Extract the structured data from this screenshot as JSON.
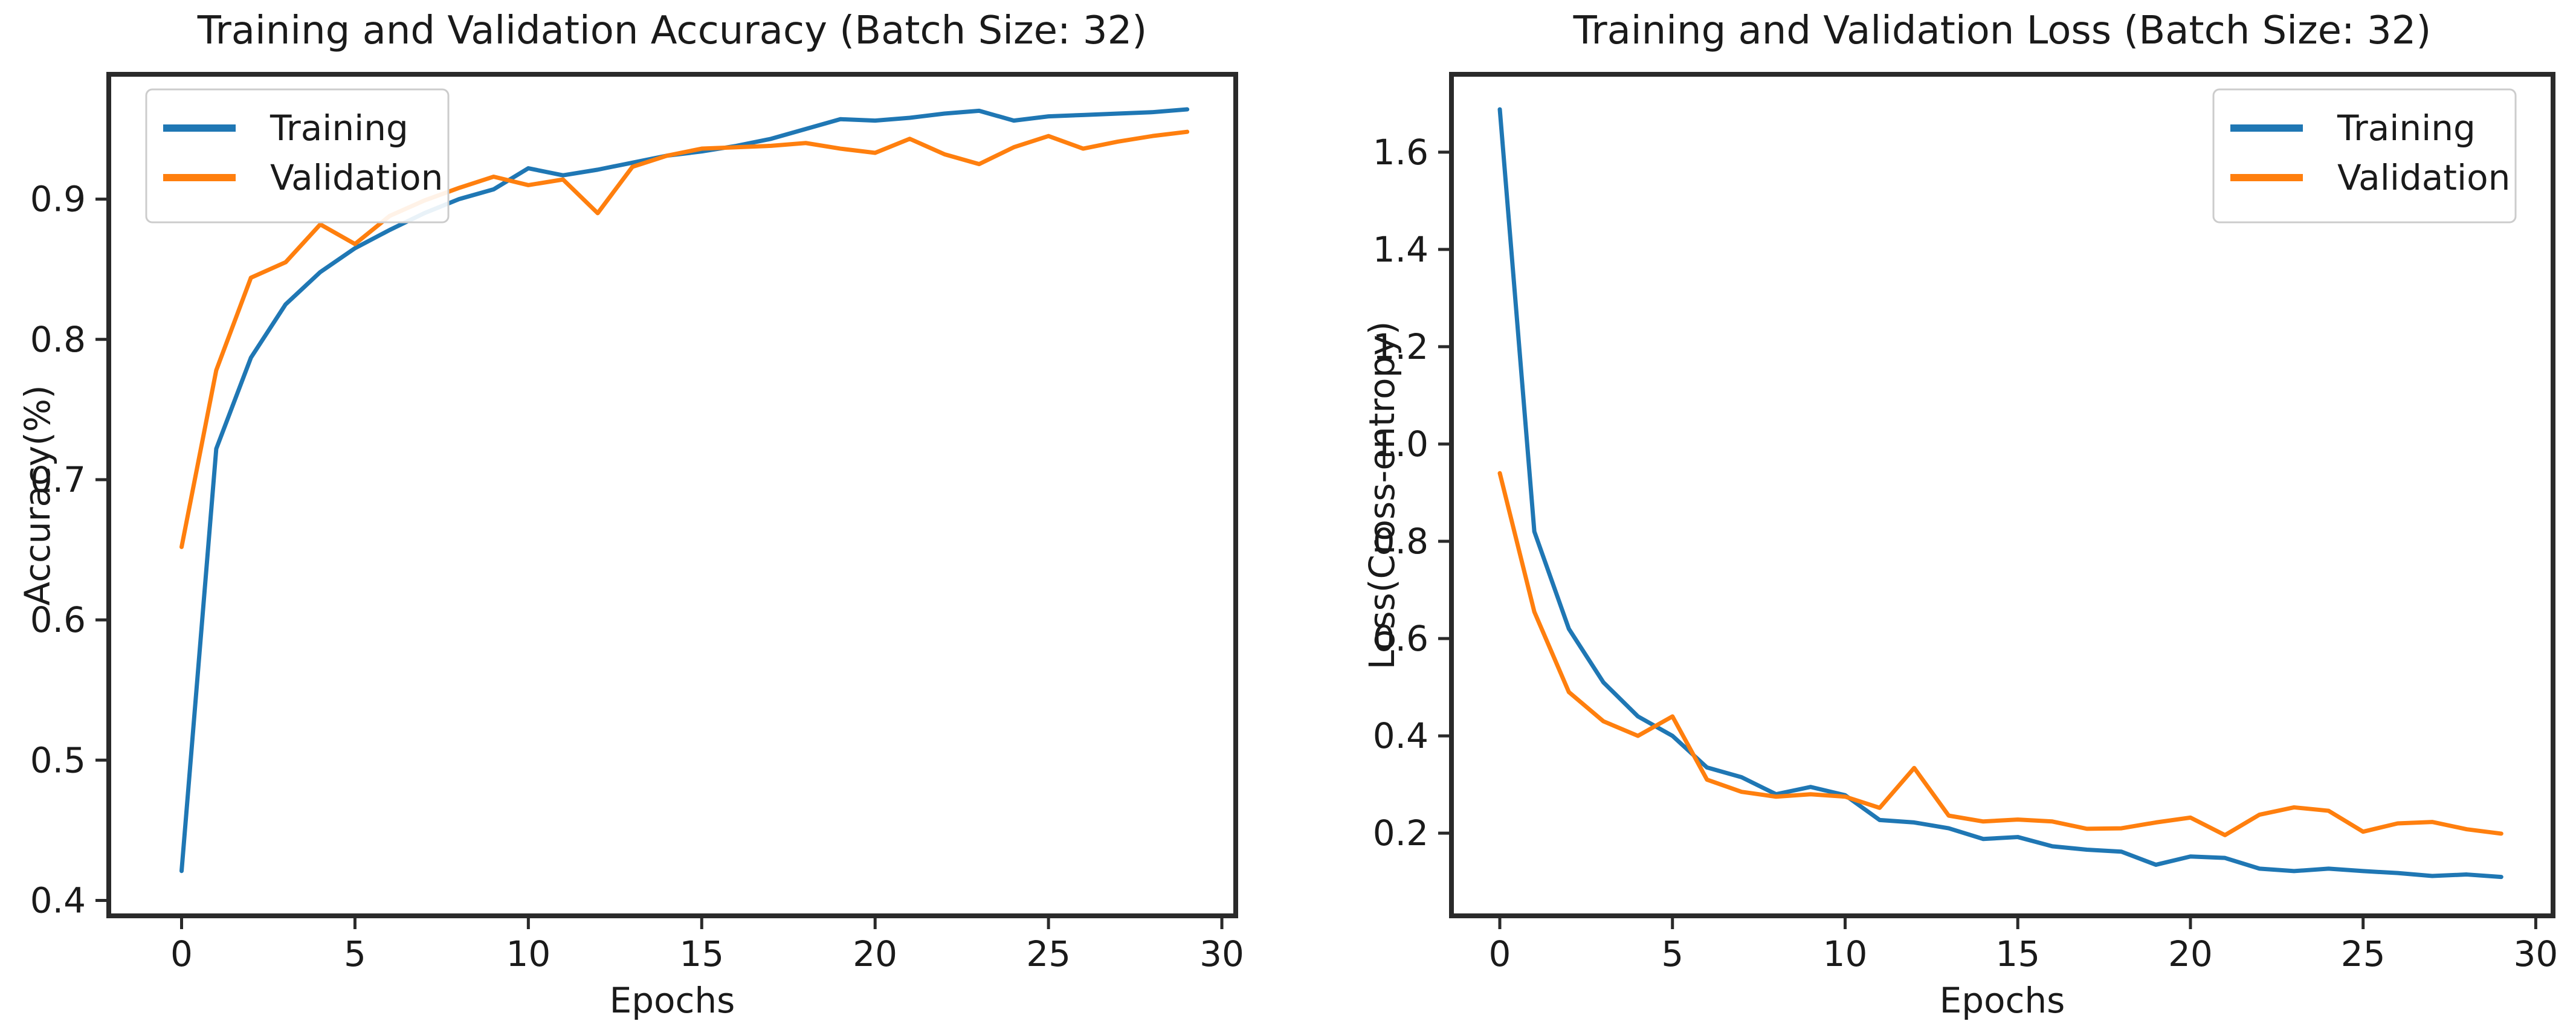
{
  "figure": {
    "background": "#ffffff",
    "text_color": "#1a1a1a",
    "spine_color": "#2a2a2a",
    "legend_border_color": "#cccccc"
  },
  "chart_data": [
    {
      "type": "line",
      "title": "Training and Validation Accuracy (Batch Size: 32)",
      "xlabel": "Epochs",
      "ylabel": "Accuracy(%)",
      "grid": false,
      "legend": {
        "position": "upper-left",
        "entries": [
          "Training",
          "Validation"
        ]
      },
      "xlim": [
        -2.1,
        30.4
      ],
      "ylim": [
        0.389,
        0.989
      ],
      "xticks": {
        "values": [
          0,
          5,
          10,
          15,
          20,
          25,
          30
        ],
        "labels": [
          "0",
          "5",
          "10",
          "15",
          "20",
          "25",
          "30"
        ]
      },
      "yticks": {
        "values": [
          0.4,
          0.5,
          0.6,
          0.7,
          0.8,
          0.9
        ],
        "labels": [
          "0.4",
          "0.5",
          "0.6",
          "0.7",
          "0.8",
          "0.9"
        ]
      },
      "x": [
        0,
        1,
        2,
        3,
        4,
        5,
        6,
        7,
        8,
        9,
        10,
        11,
        12,
        13,
        14,
        15,
        16,
        17,
        18,
        19,
        20,
        21,
        22,
        23,
        24,
        25,
        26,
        27,
        28,
        29
      ],
      "series": [
        {
          "name": "Training",
          "color": "#1f77b4",
          "values": [
            0.421,
            0.722,
            0.787,
            0.825,
            0.848,
            0.865,
            0.878,
            0.89,
            0.9,
            0.907,
            0.922,
            0.917,
            0.921,
            0.926,
            0.931,
            0.934,
            0.938,
            0.943,
            0.95,
            0.957,
            0.956,
            0.958,
            0.961,
            0.963,
            0.956,
            0.959,
            0.96,
            0.961,
            0.962,
            0.964
          ]
        },
        {
          "name": "Validation",
          "color": "#ff7f0e",
          "values": [
            0.652,
            0.778,
            0.844,
            0.855,
            0.882,
            0.868,
            0.888,
            0.899,
            0.908,
            0.916,
            0.91,
            0.914,
            0.89,
            0.923,
            0.931,
            0.936,
            0.937,
            0.938,
            0.94,
            0.936,
            0.933,
            0.943,
            0.932,
            0.925,
            0.937,
            0.945,
            0.936,
            0.941,
            0.945,
            0.948
          ]
        }
      ]
    },
    {
      "type": "line",
      "title": "Training and Validation Loss (Batch Size: 32)",
      "xlabel": "Epochs",
      "ylabel": "Loss(Cross-entropy)",
      "grid": false,
      "legend": {
        "position": "upper-right",
        "entries": [
          "Training",
          "Validation"
        ]
      },
      "xlim": [
        -1.4,
        30.5
      ],
      "ylim": [
        0.03,
        1.76
      ],
      "xticks": {
        "values": [
          0,
          5,
          10,
          15,
          20,
          25,
          30
        ],
        "labels": [
          "0",
          "5",
          "10",
          "15",
          "20",
          "25",
          "30"
        ]
      },
      "yticks": {
        "values": [
          0.2,
          0.4,
          0.6,
          0.8,
          1.0,
          1.2,
          1.4,
          1.6
        ],
        "labels": [
          "0.2",
          "0.4",
          "0.6",
          "0.8",
          "1.0",
          "1.2",
          "1.4",
          "1.6"
        ]
      },
      "x": [
        0,
        1,
        2,
        3,
        4,
        5,
        6,
        7,
        8,
        9,
        10,
        11,
        12,
        13,
        14,
        15,
        16,
        17,
        18,
        19,
        20,
        21,
        22,
        23,
        24,
        25,
        26,
        27,
        28,
        29
      ],
      "series": [
        {
          "name": "Training",
          "color": "#1f77b4",
          "values": [
            1.688,
            0.82,
            0.62,
            0.51,
            0.44,
            0.4,
            0.335,
            0.315,
            0.28,
            0.295,
            0.278,
            0.227,
            0.222,
            0.21,
            0.188,
            0.192,
            0.173,
            0.166,
            0.162,
            0.135,
            0.152,
            0.149,
            0.127,
            0.122,
            0.127,
            0.122,
            0.118,
            0.112,
            0.115,
            0.11
          ]
        },
        {
          "name": "Validation",
          "color": "#ff7f0e",
          "values": [
            0.94,
            0.655,
            0.49,
            0.43,
            0.4,
            0.44,
            0.31,
            0.285,
            0.275,
            0.28,
            0.275,
            0.252,
            0.334,
            0.236,
            0.224,
            0.228,
            0.224,
            0.209,
            0.21,
            0.222,
            0.232,
            0.196,
            0.238,
            0.253,
            0.246,
            0.203,
            0.22,
            0.223,
            0.208,
            0.199
          ]
        }
      ]
    }
  ]
}
